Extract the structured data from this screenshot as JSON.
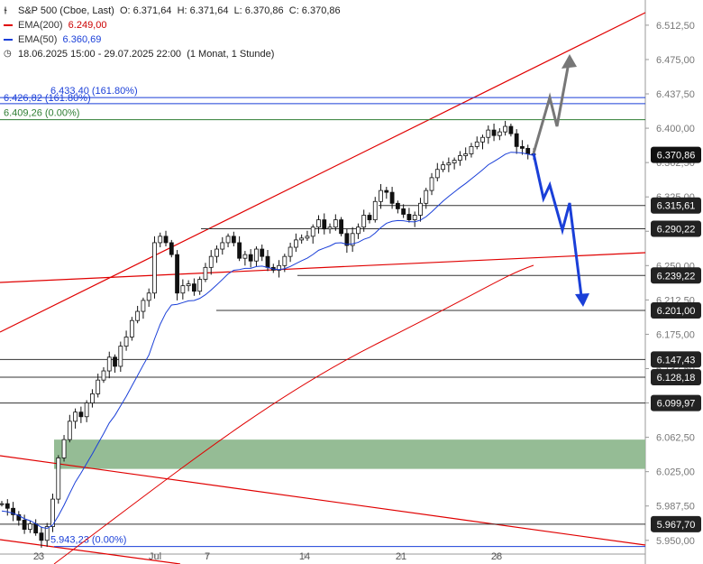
{
  "header": {
    "symbol": "S&P 500 (Cboe, Last)",
    "open": "O: 6.371,64",
    "high": "H: 6.371,64",
    "low": "L: 6.370,86",
    "close": "C: 6.370,86",
    "ema200_label": "EMA(200)",
    "ema200_value": "6.249,00",
    "ema50_label": "EMA(50)",
    "ema50_value": "6.360,69",
    "period": "18.06.2025 15:00 - 29.07.2025 22:00",
    "interval": "(1 Monat, 1 Stunde)",
    "ema200_color": "#e00000",
    "ema50_color": "#1a3fd8"
  },
  "chart_data": {
    "type": "candlestick",
    "ylim": [
      5935,
      6540
    ],
    "y_ticks": [
      "6.512,50",
      "6.475,00",
      "6.437,50",
      "6.400,00",
      "6.362,50",
      "6.325,00",
      "6.287,50",
      "6.250,00",
      "6.212,50",
      "6.175,00",
      "6.137,50",
      "6.100,00",
      "6.062,50",
      "6.025,00",
      "5.987,50",
      "5.950,00"
    ],
    "x_ticks": [
      "23",
      "Jul",
      "7",
      "14",
      "21",
      "28"
    ],
    "last_price": 6370.86,
    "last_price_label": "6.370,86",
    "levels": [
      {
        "value": 6433.4,
        "label": "6.433,40 (161.80%)",
        "color": "#1a3fd8"
      },
      {
        "value": 6426.82,
        "label": "6.426,82 (161.80%)",
        "color": "#1a3fd8"
      },
      {
        "value": 6409.26,
        "label": "6.409,26 (0.00%)",
        "color": "#2e7d32"
      },
      {
        "value": 6315.61,
        "label": "6.315,61",
        "color": "#333333"
      },
      {
        "value": 6290.22,
        "label": "6.290,22",
        "color": "#333333"
      },
      {
        "value": 6239.22,
        "label": "6.239,22",
        "color": "#333333"
      },
      {
        "value": 6201.0,
        "label": "6.201,00",
        "color": "#333333"
      },
      {
        "value": 6147.43,
        "label": "6.147,43",
        "color": "#333333"
      },
      {
        "value": 6128.18,
        "label": "6.128,18",
        "color": "#333333"
      },
      {
        "value": 6099.97,
        "label": "6.099,97",
        "color": "#333333"
      },
      {
        "value": 5967.7,
        "label": "5.967,70",
        "color": "#333333"
      },
      {
        "value": 5943.23,
        "label": "5.943,23 (0.00%)",
        "color": "#1a3fd8"
      }
    ],
    "zone": {
      "from": 6028,
      "to": 6060,
      "color": "#8fb88f"
    },
    "close_path": [
      5990,
      5985,
      5978,
      5972,
      5962,
      5968,
      5958,
      5950,
      5965,
      5995,
      6040,
      6060,
      6080,
      6090,
      6085,
      6100,
      6110,
      6125,
      6135,
      6150,
      6140,
      6162,
      6172,
      6190,
      6200,
      6212,
      6220,
      6275,
      6282,
      6275,
      6262,
      6220,
      6228,
      6230,
      6222,
      6235,
      6248,
      6260,
      6268,
      6275,
      6282,
      6275,
      6258,
      6262,
      6255,
      6268,
      6260,
      6248,
      6245,
      6250,
      6260,
      6270,
      6278,
      6280,
      6282,
      6292,
      6300,
      6290,
      6292,
      6300,
      6285,
      6272,
      6285,
      6292,
      6305,
      6300,
      6320,
      6332,
      6330,
      6318,
      6312,
      6306,
      6300,
      6305,
      6318,
      6332,
      6346,
      6355,
      6360,
      6362,
      6365,
      6370,
      6372,
      6380,
      6385,
      6390,
      6398,
      6392,
      6396,
      6402,
      6394,
      6380,
      6378,
      6372,
      6370.86
    ]
  }
}
